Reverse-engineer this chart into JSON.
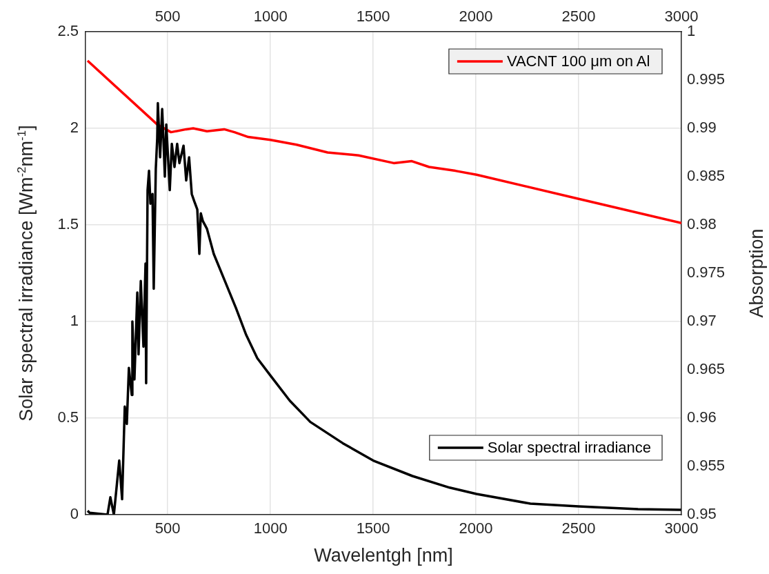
{
  "chart_data": {
    "type": "line",
    "xlabel": "Wavelentgh [nm]",
    "ylabel": "Solar spectral irradiance [Wm$^{-2}$nm$^{-1}$]",
    "y2label": "Absorption",
    "xlim": [
      100,
      3000
    ],
    "xticks": [
      500,
      1000,
      1500,
      2000,
      2500,
      3000
    ],
    "x2lim": [
      100,
      3000
    ],
    "x2ticks": [
      500,
      1000,
      1500,
      2000,
      2500,
      3000
    ],
    "ylim": [
      0,
      2.5
    ],
    "yticks": [
      0,
      0.5,
      1,
      1.5,
      2,
      2.5
    ],
    "y2lim": [
      0.95,
      1
    ],
    "y2ticks": [
      0.95,
      0.955,
      0.96,
      0.965,
      0.97,
      0.975,
      0.98,
      0.985,
      0.99,
      0.995,
      1
    ],
    "grid": true,
    "legend": "right",
    "line_style": "solid",
    "marker": "none",
    "series": [
      {
        "name": "VACNT 100 μm on Al",
        "color": "#ff0000",
        "axis": "y2",
        "x": [
          110,
          449,
          516,
          590,
          624,
          691,
          775,
          825,
          892,
          1000,
          1127,
          1278,
          1429,
          1600,
          1688,
          1772,
          1900,
          2003,
          2500,
          3000
        ],
        "values": [
          0.997,
          0.9904,
          0.9896,
          0.9899,
          0.99,
          0.9897,
          0.9899,
          0.9896,
          0.9891,
          0.9888,
          0.9883,
          0.9875,
          0.9872,
          0.9864,
          0.9866,
          0.986,
          0.9856,
          0.9852,
          0.9827,
          0.9802
        ]
      },
      {
        "name": "Solar spectral irradiance",
        "color": "#000000",
        "axis": "y",
        "x": [
          110,
          120,
          207,
          221,
          238,
          264,
          278,
          291,
          301,
          311,
          325,
          328,
          338,
          352,
          358,
          369,
          382,
          392,
          395,
          402,
          409,
          416,
          426,
          432,
          442,
          449,
          452,
          463,
          473,
          479,
          486,
          493,
          510,
          520,
          533,
          546,
          557,
          577,
          590,
          604,
          617,
          630,
          644,
          654,
          661,
          671,
          691,
          724,
          778,
          832,
          882,
          936,
          1000,
          1094,
          1194,
          1352,
          1500,
          1691,
          1872,
          2003,
          2265,
          2500,
          2789,
          3000
        ],
        "values": [
          0.02,
          0.01,
          0,
          0.09,
          0,
          0.28,
          0.08,
          0.56,
          0.47,
          0.76,
          0.62,
          1.0,
          0.7,
          1.15,
          0.83,
          1.21,
          0.87,
          1.3,
          0.68,
          1.68,
          1.78,
          1.61,
          1.66,
          1.17,
          1.79,
          1.95,
          2.13,
          1.85,
          2.1,
          1.95,
          1.75,
          2.02,
          1.68,
          1.92,
          1.8,
          1.92,
          1.82,
          1.91,
          1.73,
          1.85,
          1.66,
          1.62,
          1.58,
          1.35,
          1.56,
          1.52,
          1.48,
          1.35,
          1.21,
          1.07,
          0.93,
          0.81,
          0.72,
          0.59,
          0.48,
          0.37,
          0.28,
          0.2,
          0.14,
          0.107,
          0.057,
          0.043,
          0.029,
          0.025
        ]
      }
    ]
  }
}
